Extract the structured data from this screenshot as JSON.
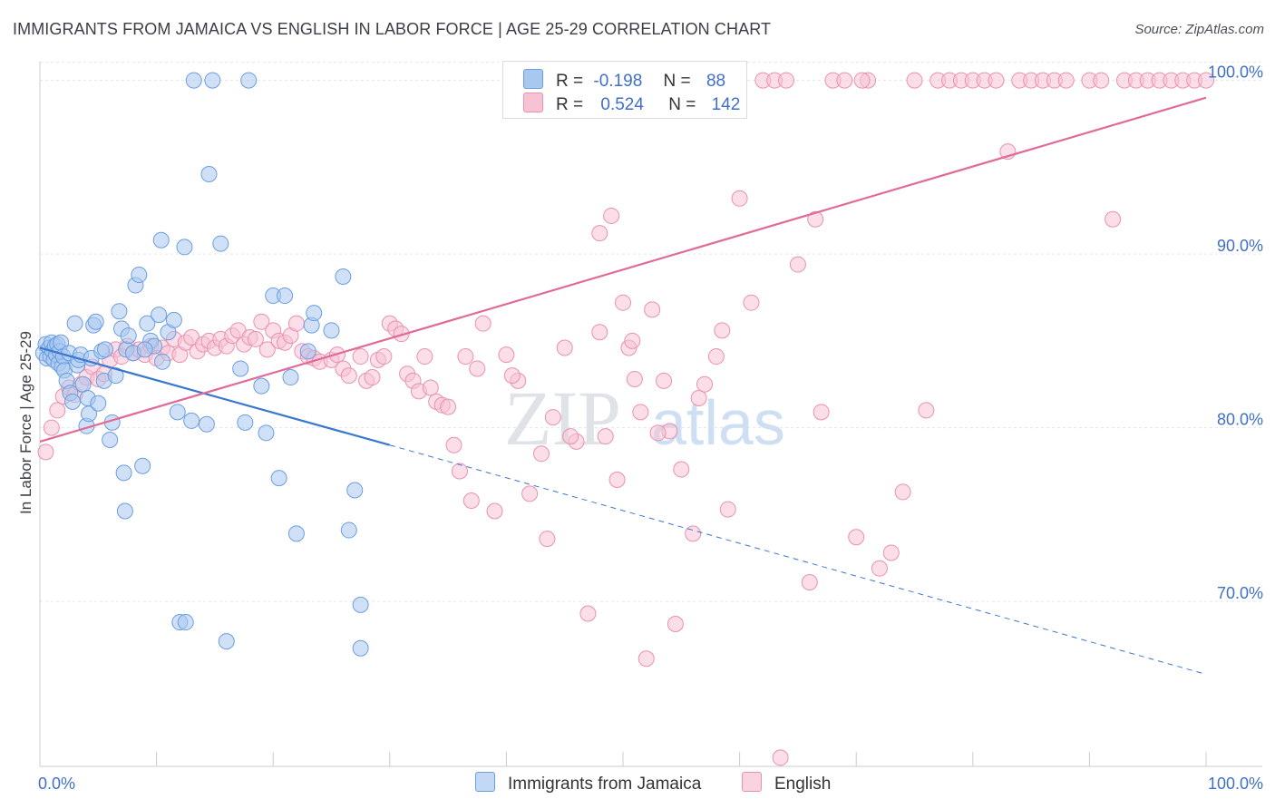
{
  "title": "IMMIGRANTS FROM JAMAICA VS ENGLISH IN LABOR FORCE | AGE 25-29 CORRELATION CHART",
  "source": "Source: ZipAtlas.com",
  "watermark": {
    "zip": "ZIP",
    "atlas": "atlas"
  },
  "legend": {
    "rows": [
      {
        "r_label": "R =",
        "r_value": "-0.198",
        "n_label": "N =",
        "n_value": "88"
      },
      {
        "r_label": "R =",
        "r_value": "0.524",
        "n_label": "N =",
        "n_value": "142"
      }
    ]
  },
  "colors": {
    "blue_fill": "#a9c8f0",
    "blue_stroke": "#6b9ee0",
    "blue_line": "#3a78d0",
    "pink_fill": "#f7c3d4",
    "pink_stroke": "#e892b0",
    "pink_line": "#e06a98",
    "tick_label": "#3f6fc9",
    "grid": "#e3e6ea"
  },
  "chart_data": {
    "type": "scatter",
    "title": "IMMIGRANTS FROM JAMAICA VS ENGLISH IN LABOR FORCE | AGE 25-29 CORRELATION CHART",
    "xlabel": "",
    "ylabel": "In Labor Force | Age 25-29",
    "xlim": [
      0,
      100
    ],
    "ylim": [
      60.5,
      102
    ],
    "x_tick_labels": [
      "0.0%",
      "100.0%"
    ],
    "y_ticks": [
      70,
      80,
      90,
      100
    ],
    "y_tick_labels": [
      "70.0%",
      "80.0%",
      "90.0%",
      "100.0%"
    ],
    "grid": true,
    "legend_position": "bottom",
    "series": [
      {
        "name": "Immigrants from Jamaica",
        "r": -0.198,
        "n": 88,
        "trend": {
          "x0": 0,
          "y0": 84.6,
          "x1": 30,
          "y1": 79.0,
          "dash_to_x": 100,
          "dash_to_y": 65.8
        },
        "points": [
          [
            0.3,
            84.3
          ],
          [
            0.5,
            84.8
          ],
          [
            0.6,
            84.0
          ],
          [
            0.8,
            84.6
          ],
          [
            0.9,
            84.1
          ],
          [
            1.0,
            84.9
          ],
          [
            1.1,
            84.4
          ],
          [
            1.2,
            83.9
          ],
          [
            1.3,
            84.7
          ],
          [
            1.4,
            84.2
          ],
          [
            1.5,
            84.8
          ],
          [
            1.6,
            83.7
          ],
          [
            1.7,
            84.4
          ],
          [
            1.8,
            84.9
          ],
          [
            1.9,
            83.5
          ],
          [
            2.0,
            84.1
          ],
          [
            2.1,
            83.3
          ],
          [
            2.3,
            82.7
          ],
          [
            2.5,
            84.3
          ],
          [
            2.6,
            82.0
          ],
          [
            2.8,
            81.5
          ],
          [
            3.0,
            86.0
          ],
          [
            3.2,
            83.6
          ],
          [
            3.3,
            83.9
          ],
          [
            3.5,
            84.2
          ],
          [
            3.7,
            82.5
          ],
          [
            4.0,
            80.1
          ],
          [
            4.1,
            81.7
          ],
          [
            4.2,
            80.8
          ],
          [
            4.4,
            84.0
          ],
          [
            4.6,
            85.9
          ],
          [
            4.8,
            86.1
          ],
          [
            5.0,
            81.4
          ],
          [
            5.3,
            84.4
          ],
          [
            5.5,
            82.7
          ],
          [
            5.6,
            84.5
          ],
          [
            6.0,
            79.3
          ],
          [
            6.2,
            80.3
          ],
          [
            6.5,
            83.0
          ],
          [
            6.8,
            86.7
          ],
          [
            7.0,
            85.7
          ],
          [
            7.2,
            77.4
          ],
          [
            7.4,
            84.5
          ],
          [
            7.6,
            85.3
          ],
          [
            8.0,
            84.3
          ],
          [
            8.2,
            88.2
          ],
          [
            8.5,
            88.8
          ],
          [
            8.8,
            77.8
          ],
          [
            9.2,
            86.0
          ],
          [
            9.5,
            85.0
          ],
          [
            9.8,
            84.7
          ],
          [
            10.2,
            86.5
          ],
          [
            10.5,
            83.8
          ],
          [
            11.0,
            85.5
          ],
          [
            11.5,
            86.2
          ],
          [
            11.8,
            80.9
          ],
          [
            12.0,
            68.8
          ],
          [
            12.5,
            68.8
          ],
          [
            13.0,
            80.4
          ],
          [
            13.2,
            100.0
          ],
          [
            10.4,
            90.8
          ],
          [
            12.4,
            90.4
          ],
          [
            14.3,
            80.2
          ],
          [
            14.5,
            94.6
          ],
          [
            14.8,
            100.0
          ],
          [
            15.5,
            90.6
          ],
          [
            16.0,
            67.7
          ],
          [
            17.2,
            83.4
          ],
          [
            17.6,
            80.3
          ],
          [
            17.9,
            100.0
          ],
          [
            19.0,
            82.4
          ],
          [
            19.4,
            79.7
          ],
          [
            20.0,
            87.6
          ],
          [
            20.5,
            77.1
          ],
          [
            21.0,
            87.6
          ],
          [
            21.5,
            82.9
          ],
          [
            22.0,
            73.9
          ],
          [
            23.0,
            84.4
          ],
          [
            23.3,
            85.9
          ],
          [
            23.5,
            86.6
          ],
          [
            25.0,
            85.6
          ],
          [
            26.0,
            88.7
          ],
          [
            26.5,
            74.1
          ],
          [
            27.0,
            76.4
          ],
          [
            27.5,
            67.3
          ],
          [
            9.0,
            84.5
          ],
          [
            7.3,
            75.2
          ],
          [
            27.5,
            69.8
          ]
        ]
      },
      {
        "name": "English",
        "r": 0.524,
        "n": 142,
        "trend": {
          "x0": 0,
          "y0": 79.2,
          "x1": 100,
          "y1": 99.0
        },
        "points": [
          [
            0.5,
            78.6
          ],
          [
            1.0,
            80.0
          ],
          [
            1.5,
            81.0
          ],
          [
            2.0,
            81.8
          ],
          [
            2.5,
            82.3
          ],
          [
            3.0,
            81.9
          ],
          [
            3.5,
            82.5
          ],
          [
            4.0,
            82.9
          ],
          [
            4.5,
            83.5
          ],
          [
            5.0,
            82.8
          ],
          [
            5.5,
            83.1
          ],
          [
            6.0,
            83.9
          ],
          [
            6.5,
            84.5
          ],
          [
            7.0,
            84.1
          ],
          [
            7.5,
            84.7
          ],
          [
            8.0,
            84.3
          ],
          [
            8.5,
            84.5
          ],
          [
            9.0,
            84.2
          ],
          [
            9.5,
            84.7
          ],
          [
            10.0,
            84.0
          ],
          [
            10.5,
            84.6
          ],
          [
            11.0,
            84.3
          ],
          [
            11.5,
            85.1
          ],
          [
            12.0,
            84.2
          ],
          [
            12.5,
            84.9
          ],
          [
            13.0,
            85.2
          ],
          [
            13.5,
            84.4
          ],
          [
            14.0,
            84.8
          ],
          [
            14.5,
            85.0
          ],
          [
            15.0,
            84.6
          ],
          [
            15.5,
            85.1
          ],
          [
            16.0,
            84.7
          ],
          [
            16.5,
            85.3
          ],
          [
            17.0,
            85.6
          ],
          [
            17.5,
            84.8
          ],
          [
            18.0,
            85.2
          ],
          [
            18.5,
            85.1
          ],
          [
            19.0,
            86.1
          ],
          [
            19.5,
            84.5
          ],
          [
            20.0,
            85.6
          ],
          [
            20.5,
            85.0
          ],
          [
            21.0,
            84.9
          ],
          [
            21.5,
            85.3
          ],
          [
            22.0,
            86.0
          ],
          [
            22.5,
            84.4
          ],
          [
            23.0,
            84.1
          ],
          [
            23.5,
            84.0
          ],
          [
            24.0,
            83.8
          ],
          [
            25.0,
            83.9
          ],
          [
            25.5,
            84.2
          ],
          [
            26.0,
            83.4
          ],
          [
            26.5,
            83.0
          ],
          [
            27.5,
            84.1
          ],
          [
            28.0,
            82.7
          ],
          [
            28.5,
            82.9
          ],
          [
            29.0,
            83.9
          ],
          [
            29.5,
            84.1
          ],
          [
            30.0,
            86.0
          ],
          [
            30.5,
            85.7
          ],
          [
            31.0,
            85.4
          ],
          [
            31.5,
            83.1
          ],
          [
            32.0,
            82.7
          ],
          [
            32.5,
            82.1
          ],
          [
            33.0,
            84.1
          ],
          [
            33.5,
            82.3
          ],
          [
            34.0,
            81.5
          ],
          [
            34.5,
            81.3
          ],
          [
            35.0,
            81.2
          ],
          [
            35.5,
            79.0
          ],
          [
            36.0,
            77.5
          ],
          [
            37.0,
            75.8
          ],
          [
            38.0,
            86.0
          ],
          [
            39.0,
            75.2
          ],
          [
            40.0,
            84.2
          ],
          [
            41.0,
            82.7
          ],
          [
            42.0,
            76.2
          ],
          [
            43.0,
            78.5
          ],
          [
            44.0,
            80.6
          ],
          [
            45.0,
            84.6
          ],
          [
            46.0,
            79.2
          ],
          [
            47.0,
            69.3
          ],
          [
            48.0,
            85.5
          ],
          [
            48.5,
            79.5
          ],
          [
            49.0,
            92.2
          ],
          [
            49.5,
            77.0
          ],
          [
            50.0,
            87.2
          ],
          [
            50.5,
            84.6
          ],
          [
            51.0,
            82.8
          ],
          [
            51.5,
            80.9
          ],
          [
            52.0,
            66.7
          ],
          [
            52.5,
            86.8
          ],
          [
            53.5,
            82.7
          ],
          [
            54.0,
            79.8
          ],
          [
            54.5,
            68.7
          ],
          [
            55.0,
            77.6
          ],
          [
            56.0,
            73.9
          ],
          [
            57.0,
            82.5
          ],
          [
            58.0,
            84.1
          ],
          [
            58.5,
            85.6
          ],
          [
            59.0,
            75.3
          ],
          [
            60.0,
            93.2
          ],
          [
            61.0,
            87.2
          ],
          [
            62.0,
            100.0
          ],
          [
            63.0,
            100.0
          ],
          [
            64.0,
            100.0
          ],
          [
            65.0,
            89.4
          ],
          [
            66.0,
            71.1
          ],
          [
            67.0,
            80.9
          ],
          [
            68.0,
            100.0
          ],
          [
            69.0,
            100.0
          ],
          [
            70.0,
            73.7
          ],
          [
            71.0,
            100.0
          ],
          [
            72.0,
            71.9
          ],
          [
            73.0,
            72.8
          ],
          [
            74.0,
            76.3
          ],
          [
            75.0,
            100.0
          ],
          [
            76.0,
            81.0
          ],
          [
            77.0,
            100.0
          ],
          [
            78.0,
            100.0
          ],
          [
            79.0,
            100.0
          ],
          [
            80.0,
            100.0
          ],
          [
            81.0,
            100.0
          ],
          [
            82.0,
            100.0
          ],
          [
            83.0,
            95.9
          ],
          [
            84.0,
            100.0
          ],
          [
            85.0,
            100.0
          ],
          [
            86.0,
            100.0
          ],
          [
            87.0,
            100.0
          ],
          [
            88.0,
            100.0
          ],
          [
            90.0,
            100.0
          ],
          [
            91.0,
            100.0
          ],
          [
            92.0,
            92.0
          ],
          [
            93.0,
            100.0
          ],
          [
            94.0,
            100.0
          ],
          [
            95.0,
            100.0
          ],
          [
            96.0,
            100.0
          ],
          [
            97.0,
            100.0
          ],
          [
            98.0,
            100.0
          ],
          [
            99.0,
            100.0
          ],
          [
            100.0,
            100.0
          ],
          [
            36.5,
            84.1
          ],
          [
            37.5,
            83.4
          ],
          [
            40.5,
            83.0
          ],
          [
            43.5,
            73.6
          ],
          [
            45.5,
            79.5
          ],
          [
            48.0,
            91.2
          ],
          [
            50.8,
            85.0
          ],
          [
            53.0,
            79.7
          ],
          [
            56.5,
            81.7
          ],
          [
            63.5,
            61.0
          ],
          [
            66.5,
            92.0
          ],
          [
            70.5,
            100.0
          ]
        ]
      }
    ]
  },
  "bottom_legend": [
    {
      "label": "Immigrants from Jamaica"
    },
    {
      "label": "English"
    }
  ]
}
